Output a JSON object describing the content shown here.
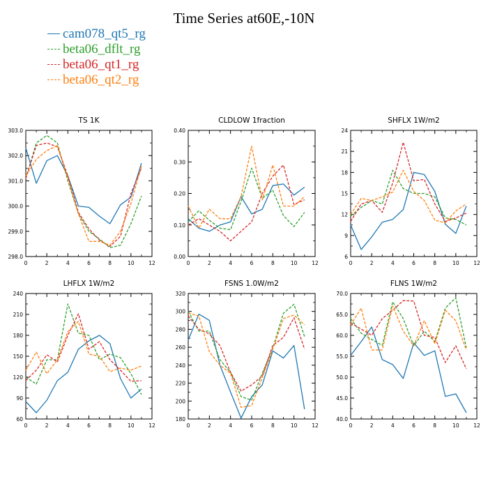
{
  "title": "Time Series at60E,-10N",
  "legend": [
    {
      "name": "cam078_qt5_rg",
      "color": "#1f77b4",
      "dash": false
    },
    {
      "name": "beta06_dflt_rg",
      "color": "#2ca02c",
      "dash": true
    },
    {
      "name": "beta06_qt1_rg",
      "color": "#d62728",
      "dash": true
    },
    {
      "name": "beta06_qt2_rg",
      "color": "#ff7f0e",
      "dash": true
    }
  ],
  "chart_data": [
    {
      "type": "line",
      "title": "TS   1K",
      "x": [
        0,
        1,
        2,
        3,
        4,
        5,
        6,
        7,
        8,
        9,
        10,
        11
      ],
      "xlim": [
        0,
        12
      ],
      "xticks": [
        "0",
        "2",
        "4",
        "6",
        "8",
        "10",
        "12"
      ],
      "ylim": [
        298,
        303
      ],
      "yticks": [
        "298.0",
        "299.0",
        "300.0",
        "301.0",
        "302.0",
        "303.0"
      ],
      "series": [
        {
          "name": "cam078_qt5_rg",
          "values": [
            302.3,
            300.9,
            301.8,
            302.0,
            301.2,
            300.0,
            299.95,
            299.6,
            299.3,
            300.05,
            300.35,
            301.7
          ]
        },
        {
          "name": "beta06_dflt_rg",
          "values": [
            301.1,
            302.5,
            302.8,
            302.5,
            301.0,
            299.7,
            299.0,
            298.7,
            298.35,
            298.45,
            299.3,
            300.4
          ]
        },
        {
          "name": "beta06_qt1_rg",
          "values": [
            301.1,
            302.4,
            302.5,
            302.35,
            301.2,
            299.75,
            299.1,
            298.65,
            298.4,
            298.8,
            300.5,
            301.5
          ]
        },
        {
          "name": "beta06_qt2_rg",
          "values": [
            301.2,
            301.85,
            302.2,
            302.4,
            301.1,
            299.7,
            298.6,
            298.6,
            298.45,
            299.0,
            300.1,
            301.6
          ]
        }
      ]
    },
    {
      "type": "line",
      "title": "CLDLOW   1fraction",
      "x": [
        0,
        1,
        2,
        3,
        4,
        5,
        6,
        7,
        8,
        9,
        10,
        11
      ],
      "xlim": [
        0,
        12
      ],
      "xticks": [
        "0",
        "2",
        "4",
        "6",
        "8",
        "10",
        "12"
      ],
      "ylim": [
        0,
        0.4
      ],
      "yticks": [
        "0.00",
        "0.10",
        "0.20",
        "0.30",
        "0.40"
      ],
      "series": [
        {
          "name": "cam078_qt5_rg",
          "values": [
            0.12,
            0.09,
            0.08,
            0.1,
            0.11,
            0.19,
            0.135,
            0.15,
            0.225,
            0.23,
            0.195,
            0.22
          ]
        },
        {
          "name": "beta06_dflt_rg",
          "values": [
            0.11,
            0.145,
            0.115,
            0.09,
            0.085,
            0.175,
            0.28,
            0.185,
            0.21,
            0.13,
            0.095,
            0.14
          ]
        },
        {
          "name": "beta06_qt1_rg",
          "values": [
            0.1,
            0.12,
            0.1,
            0.08,
            0.05,
            0.08,
            0.11,
            0.2,
            0.255,
            0.29,
            0.165,
            0.18
          ]
        },
        {
          "name": "beta06_qt2_rg",
          "values": [
            0.16,
            0.09,
            0.15,
            0.12,
            0.12,
            0.19,
            0.35,
            0.18,
            0.29,
            0.16,
            0.16,
            0.19
          ]
        }
      ]
    },
    {
      "type": "line",
      "title": "SHFLX   1W/m2",
      "x": [
        0,
        1,
        2,
        3,
        4,
        5,
        6,
        7,
        8,
        9,
        10,
        11
      ],
      "xlim": [
        0,
        12
      ],
      "xticks": [
        "0",
        "2",
        "4",
        "6",
        "8",
        "10",
        "12"
      ],
      "ylim": [
        6,
        24
      ],
      "yticks": [
        "6",
        "9",
        "12",
        "15",
        "18",
        "21",
        "24"
      ],
      "series": [
        {
          "name": "cam078_qt5_rg",
          "values": [
            10.5,
            7.0,
            8.8,
            10.9,
            11.3,
            12.7,
            18.0,
            17.7,
            15.3,
            10.6,
            9.3,
            13.2
          ]
        },
        {
          "name": "beta06_dflt_rg",
          "values": [
            11.8,
            13.0,
            14.0,
            13.5,
            18.3,
            15.7,
            15.0,
            15.0,
            14.5,
            11.5,
            11.3,
            10.5
          ]
        },
        {
          "name": "beta06_qt1_rg",
          "values": [
            11.0,
            13.5,
            14.0,
            12.3,
            16.5,
            22.3,
            16.8,
            17.0,
            13.5,
            11.0,
            11.5,
            12.2
          ]
        },
        {
          "name": "beta06_qt2_rg",
          "values": [
            12.0,
            14.3,
            14.0,
            14.5,
            15.2,
            18.3,
            15.3,
            14.0,
            11.2,
            10.8,
            12.5,
            13.5
          ]
        }
      ]
    },
    {
      "type": "line",
      "title": "LHFLX   1W/m2",
      "x": [
        0,
        1,
        2,
        3,
        4,
        5,
        6,
        7,
        8,
        9,
        10,
        11
      ],
      "xlim": [
        0,
        12
      ],
      "xticks": [
        "0",
        "2",
        "4",
        "6",
        "8",
        "10",
        "12"
      ],
      "ylim": [
        60,
        240
      ],
      "yticks": [
        "60",
        "90",
        "120",
        "150",
        "180",
        "210",
        "240"
      ],
      "series": [
        {
          "name": "cam078_qt5_rg",
          "values": [
            85,
            69,
            87,
            115,
            127,
            160,
            172,
            180,
            168,
            118,
            90,
            103
          ]
        },
        {
          "name": "beta06_dflt_rg",
          "values": [
            120,
            110,
            145,
            145,
            225,
            183,
            180,
            145,
            153,
            148,
            125,
            95
          ]
        },
        {
          "name": "beta06_qt1_rg",
          "values": [
            115,
            130,
            152,
            142,
            180,
            211,
            160,
            171,
            145,
            130,
            114,
            115
          ]
        },
        {
          "name": "beta06_qt2_rg",
          "values": [
            130,
            156,
            125,
            145,
            185,
            200,
            153,
            150,
            128,
            133,
            130,
            136
          ]
        }
      ]
    },
    {
      "type": "line",
      "title": "FSNS   1.0W/m2",
      "x": [
        0,
        1,
        2,
        3,
        4,
        5,
        6,
        7,
        8,
        9,
        10,
        11
      ],
      "xlim": [
        0,
        12
      ],
      "xticks": [
        "0",
        "2",
        "4",
        "6",
        "8",
        "10",
        "12"
      ],
      "ylim": [
        180,
        320
      ],
      "yticks": [
        "180",
        "200",
        "220",
        "240",
        "260",
        "280",
        "300",
        "320"
      ],
      "series": [
        {
          "name": "cam078_qt5_rg",
          "values": [
            268,
            297,
            290,
            240,
            210,
            181,
            205,
            218,
            256,
            248,
            262,
            191
          ]
        },
        {
          "name": "beta06_dflt_rg",
          "values": [
            300,
            278,
            278,
            246,
            232,
            205,
            201,
            231,
            259,
            298,
            308,
            272
          ]
        },
        {
          "name": "beta06_qt1_rg",
          "values": [
            295,
            280,
            275,
            262,
            232,
            211,
            218,
            228,
            262,
            271,
            293,
            258
          ]
        },
        {
          "name": "beta06_qt2_rg",
          "values": [
            298,
            295,
            255,
            240,
            231,
            193,
            195,
            226,
            258,
            292,
            296,
            285
          ]
        }
      ]
    },
    {
      "type": "line",
      "title": "FLNS   1W/m2",
      "x": [
        0,
        1,
        2,
        3,
        4,
        5,
        6,
        7,
        8,
        9,
        10,
        11
      ],
      "xlim": [
        0,
        12
      ],
      "xticks": [
        "0",
        "2",
        "4",
        "6",
        "8",
        "10",
        "12"
      ],
      "ylim": [
        40,
        70
      ],
      "yticks": [
        "40.0",
        "45.0",
        "50.0",
        "55.0",
        "60.0",
        "65.0",
        "70.0"
      ],
      "series": [
        {
          "name": "cam078_qt5_rg",
          "values": [
            55.2,
            58.5,
            62.0,
            54.2,
            53.0,
            49.7,
            58.2,
            55.2,
            56.3,
            45.4,
            46.0,
            41.5
          ]
        },
        {
          "name": "beta06_dflt_rg",
          "values": [
            64.0,
            60.5,
            59.0,
            57.6,
            68.0,
            64.0,
            57.5,
            61.0,
            58.5,
            66.5,
            69.0,
            57.0
          ]
        },
        {
          "name": "beta06_qt1_rg",
          "values": [
            63.0,
            61.5,
            60.0,
            64.0,
            66.0,
            68.3,
            68.2,
            60.0,
            59.5,
            53.5,
            57.5,
            52.0
          ]
        },
        {
          "name": "beta06_qt2_rg",
          "values": [
            62.5,
            66.5,
            56.5,
            56.5,
            67.0,
            61.0,
            57.5,
            63.5,
            58.0,
            66.0,
            63.5,
            56.5
          ]
        }
      ]
    }
  ]
}
